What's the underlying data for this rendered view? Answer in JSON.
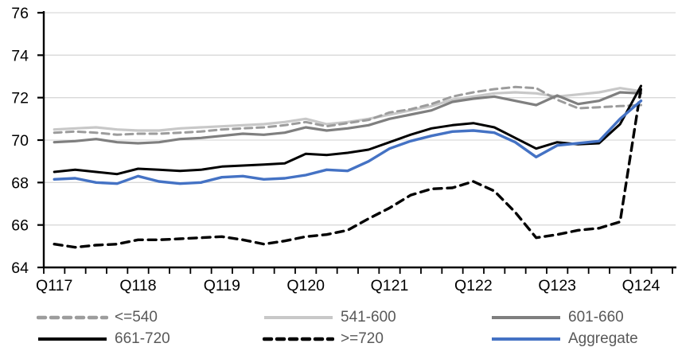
{
  "chart_data": {
    "type": "line",
    "title": "",
    "xlabel": "",
    "ylabel": "",
    "ylim": [
      64,
      76
    ],
    "y_ticks": [
      64,
      66,
      68,
      70,
      72,
      74,
      76
    ],
    "grid": "horizontal",
    "n_points": 29,
    "x_tick_labels": [
      "Q117",
      "Q118",
      "Q119",
      "Q120",
      "Q121",
      "Q122",
      "Q123",
      "Q124"
    ],
    "x_label_indices": [
      0,
      4,
      8,
      12,
      16,
      20,
      24,
      28
    ],
    "legend_position": "bottom",
    "colors": {
      "grid": "#d9d9d9",
      "axis": "#000000",
      "tick_label": "#000000",
      "legend_text": "#595959",
      "accent_blue": "#4472c4"
    },
    "series": [
      {
        "name": "<=540",
        "color": "#9c9c9c",
        "style": "dashed",
        "values": [
          70.35,
          70.4,
          70.35,
          70.25,
          70.3,
          70.3,
          70.35,
          70.4,
          70.5,
          70.55,
          70.6,
          70.7,
          70.85,
          70.65,
          70.8,
          70.95,
          71.3,
          71.45,
          71.7,
          72.05,
          72.25,
          72.4,
          72.5,
          72.45,
          71.9,
          71.5,
          71.55,
          71.6,
          71.65
        ]
      },
      {
        "name": "541-600",
        "color": "#c8c8c8",
        "style": "solid",
        "values": [
          70.5,
          70.55,
          70.6,
          70.5,
          70.45,
          70.45,
          70.55,
          70.6,
          70.65,
          70.7,
          70.75,
          70.85,
          71.0,
          70.75,
          70.85,
          71.0,
          71.2,
          71.4,
          71.6,
          71.9,
          72.05,
          72.2,
          72.25,
          72.2,
          72.05,
          72.15,
          72.25,
          72.45,
          72.3
        ]
      },
      {
        "name": "601-660",
        "color": "#7f7f7f",
        "style": "solid",
        "values": [
          69.9,
          69.95,
          70.05,
          69.9,
          69.85,
          69.9,
          70.05,
          70.1,
          70.2,
          70.3,
          70.25,
          70.35,
          70.6,
          70.45,
          70.55,
          70.7,
          71.0,
          71.2,
          71.4,
          71.8,
          71.95,
          72.05,
          71.85,
          71.65,
          72.1,
          71.7,
          71.85,
          72.25,
          72.2
        ]
      },
      {
        "name": "661-720",
        "color": "#000000",
        "style": "solid",
        "values": [
          68.5,
          68.6,
          68.5,
          68.4,
          68.65,
          68.6,
          68.55,
          68.6,
          68.75,
          68.8,
          68.85,
          68.9,
          69.35,
          69.3,
          69.4,
          69.55,
          69.9,
          70.25,
          70.55,
          70.7,
          70.8,
          70.6,
          70.1,
          69.6,
          69.9,
          69.8,
          69.85,
          70.75,
          72.55
        ]
      },
      {
        "name": ">=720",
        "color": "#000000",
        "style": "dashed",
        "values": [
          65.1,
          64.95,
          65.05,
          65.1,
          65.3,
          65.3,
          65.35,
          65.4,
          65.45,
          65.3,
          65.1,
          65.25,
          65.45,
          65.55,
          65.75,
          66.3,
          66.8,
          67.4,
          67.7,
          67.75,
          68.05,
          67.6,
          66.6,
          65.4,
          65.55,
          65.75,
          65.85,
          66.15,
          72.45
        ]
      },
      {
        "name": "Aggregate",
        "color": "#4472c4",
        "style": "solid",
        "values": [
          68.15,
          68.2,
          68.0,
          67.95,
          68.3,
          68.05,
          67.95,
          68.0,
          68.25,
          68.3,
          68.15,
          68.2,
          68.35,
          68.6,
          68.55,
          69.0,
          69.6,
          69.95,
          70.2,
          70.4,
          70.45,
          70.35,
          69.9,
          69.2,
          69.75,
          69.85,
          69.95,
          71.0,
          71.85
        ]
      }
    ]
  }
}
